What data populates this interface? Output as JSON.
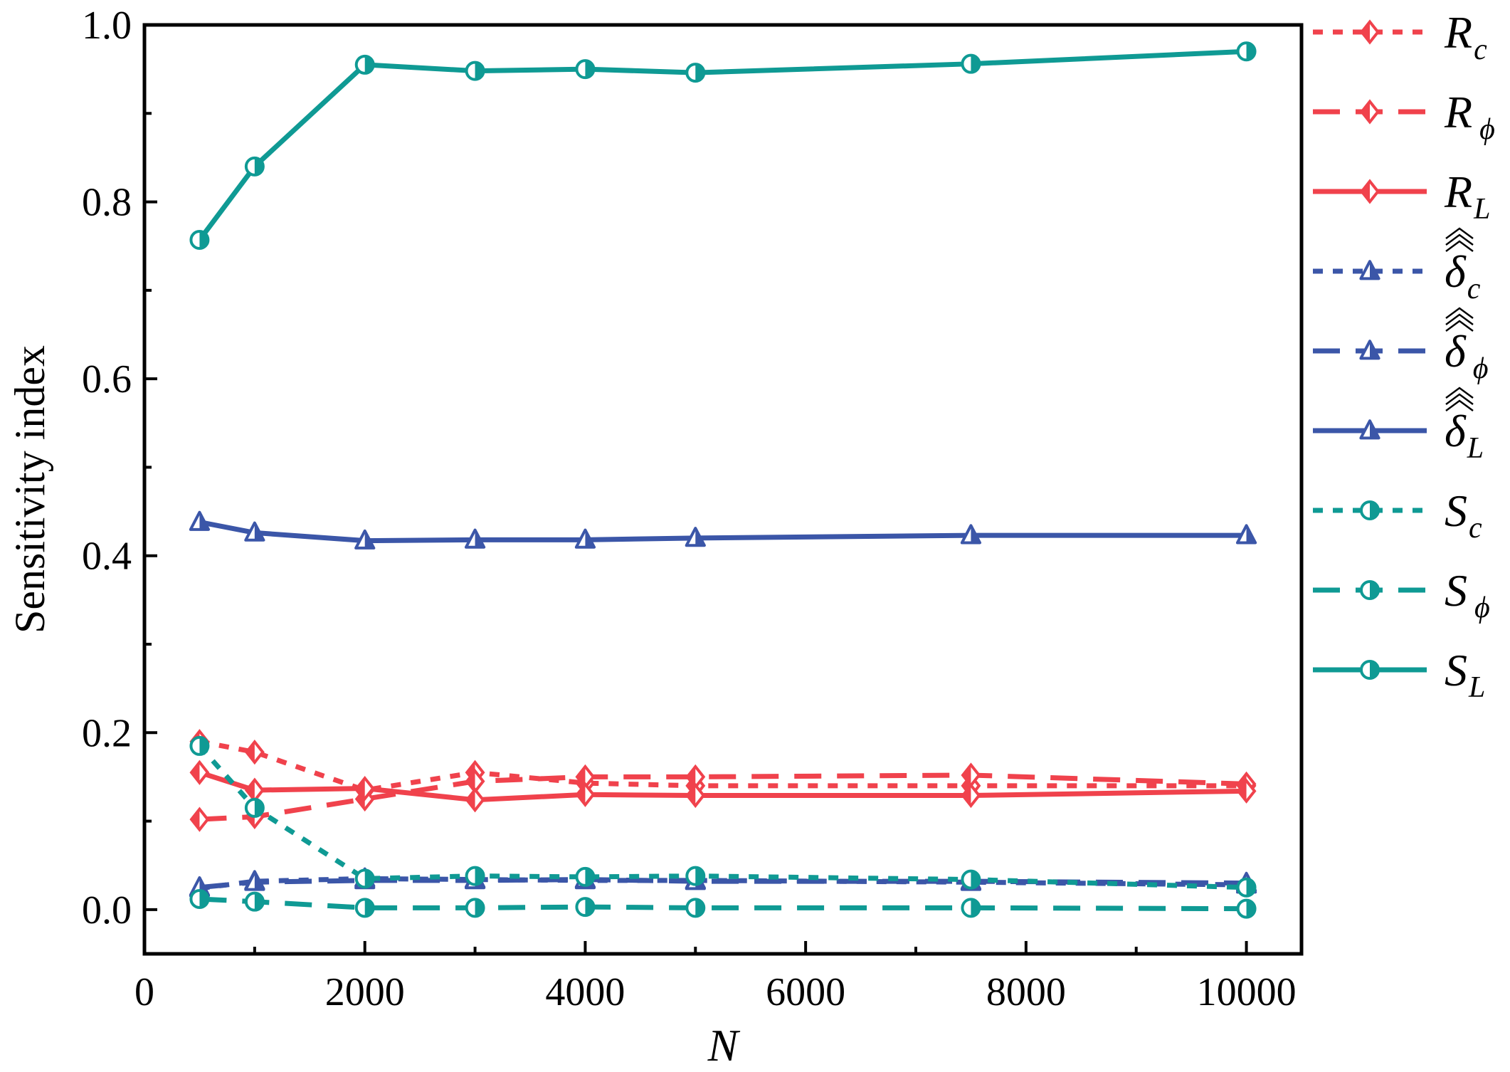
{
  "chart_data": {
    "type": "line",
    "xlabel": "N",
    "ylabel": "Sensitivity index",
    "xlim": [
      0,
      10500
    ],
    "ylim": [
      -0.05,
      1.0
    ],
    "xticks": [
      "0",
      "2000",
      "4000",
      "6000",
      "8000",
      "10000"
    ],
    "yticks": [
      "0.0",
      "0.2",
      "0.4",
      "0.6",
      "0.8",
      "1.0"
    ],
    "grid": false,
    "legend_position": "right-outside",
    "x": [
      500,
      1000,
      2000,
      3000,
      4000,
      5000,
      7500,
      10000
    ],
    "series": [
      {
        "name": "R_c",
        "base": "R",
        "sub": "c",
        "hat": false,
        "color": "#f0424c",
        "dash": "short",
        "marker": "diamond",
        "values": [
          0.19,
          0.178,
          0.135,
          0.155,
          0.143,
          0.14,
          0.14,
          0.14
        ]
      },
      {
        "name": "R_phi",
        "base": "R",
        "sub": "ϕ",
        "hat": false,
        "color": "#f0424c",
        "dash": "long",
        "marker": "diamond",
        "values": [
          0.102,
          0.105,
          0.125,
          0.145,
          0.15,
          0.15,
          0.152,
          0.142
        ]
      },
      {
        "name": "R_L",
        "base": "R",
        "sub": "L",
        "hat": false,
        "color": "#f0424c",
        "dash": "solid",
        "marker": "diamond",
        "values": [
          0.155,
          0.135,
          0.137,
          0.124,
          0.13,
          0.129,
          0.129,
          0.134
        ]
      },
      {
        "name": "delta_c",
        "base": "δ",
        "sub": "c",
        "hat": true,
        "color": "#3b56a8",
        "dash": "short",
        "marker": "triangle",
        "values": [
          0.024,
          0.032,
          0.035,
          0.034,
          0.033,
          0.033,
          0.031,
          0.028
        ]
      },
      {
        "name": "delta_phi",
        "base": "δ",
        "sub": "ϕ",
        "hat": true,
        "color": "#3b56a8",
        "dash": "long",
        "marker": "triangle",
        "values": [
          0.025,
          0.031,
          0.033,
          0.033,
          0.034,
          0.032,
          0.032,
          0.03
        ]
      },
      {
        "name": "delta_L",
        "base": "δ",
        "sub": "L",
        "hat": true,
        "color": "#3b56a8",
        "dash": "solid",
        "marker": "triangle",
        "values": [
          0.438,
          0.426,
          0.417,
          0.418,
          0.418,
          0.42,
          0.423,
          0.423
        ]
      },
      {
        "name": "S_c",
        "base": "S",
        "sub": "c",
        "hat": false,
        "color": "#0f9a94",
        "dash": "short",
        "marker": "circle",
        "values": [
          0.185,
          0.115,
          0.035,
          0.038,
          0.037,
          0.038,
          0.034,
          0.025
        ]
      },
      {
        "name": "S_phi",
        "base": "S",
        "sub": "ϕ",
        "hat": false,
        "color": "#0f9a94",
        "dash": "long",
        "marker": "circle",
        "values": [
          0.012,
          0.009,
          0.002,
          0.002,
          0.003,
          0.002,
          0.002,
          0.001
        ]
      },
      {
        "name": "S_L",
        "base": "S",
        "sub": "L",
        "hat": false,
        "color": "#0f9a94",
        "dash": "solid",
        "marker": "circle",
        "values": [
          0.757,
          0.84,
          0.955,
          0.948,
          0.95,
          0.946,
          0.956,
          0.97
        ]
      }
    ]
  }
}
